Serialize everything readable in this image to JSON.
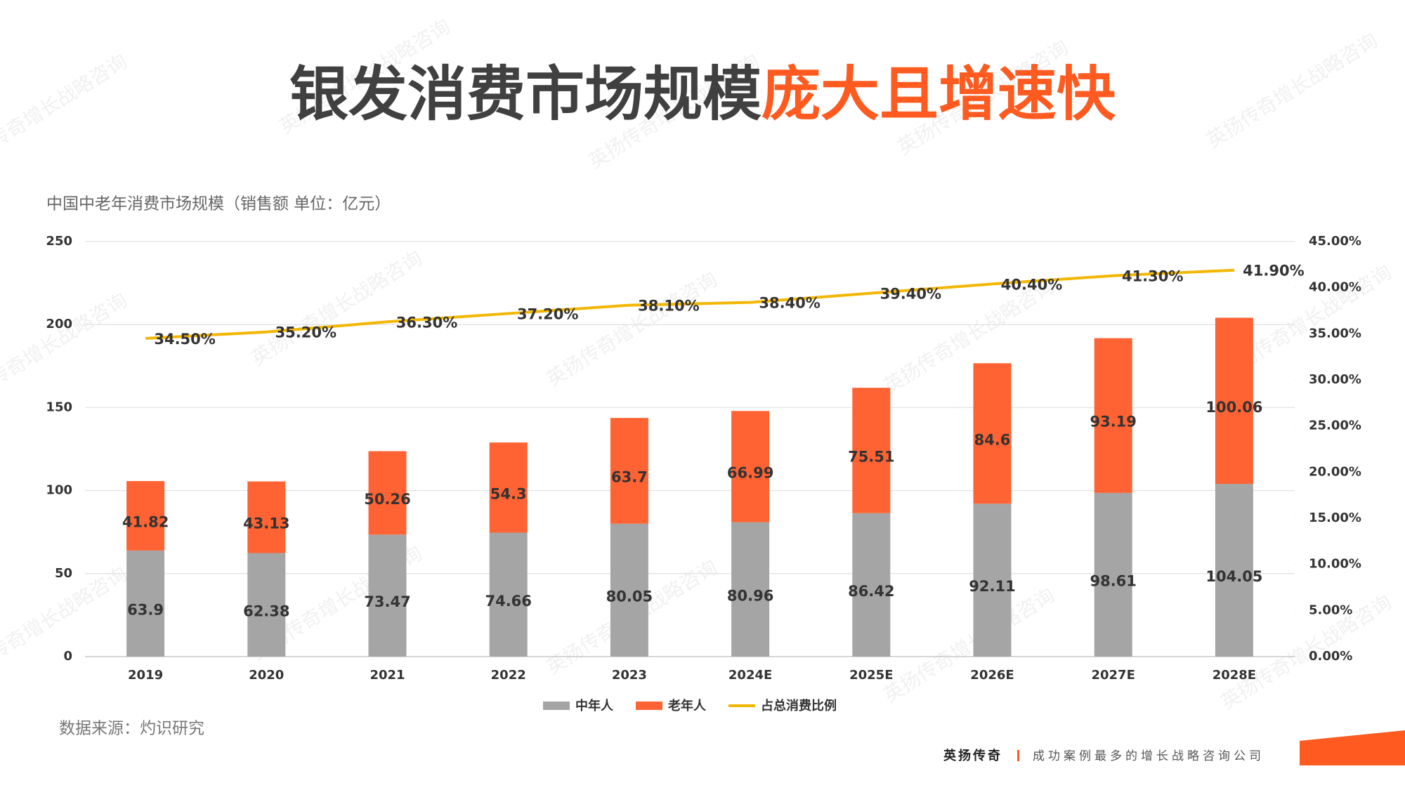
{
  "header": {
    "title_main": "银发消费市场规模",
    "title_highlight": "庞大且增速快"
  },
  "watermark": "英扬传奇增长战略咨询",
  "chart_data": {
    "type": "bar",
    "subtitle": "中国中老年消费市场规模（销售额 单位：亿元）",
    "categories": [
      "2019",
      "2020",
      "2021",
      "2022",
      "2023",
      "2024E",
      "2025E",
      "2026E",
      "2027E",
      "2028E"
    ],
    "series": [
      {
        "name": "中年人",
        "type": "bar",
        "color": "#a5a5a5",
        "values": [
          63.9,
          62.38,
          73.47,
          74.66,
          80.05,
          80.96,
          86.42,
          92.11,
          98.61,
          104.05
        ]
      },
      {
        "name": "老年人",
        "type": "bar",
        "color": "#ff6333",
        "values": [
          41.82,
          43.13,
          50.26,
          54.3,
          63.7,
          66.99,
          75.51,
          84.6,
          93.19,
          100.06
        ]
      },
      {
        "name": "占总消费比例",
        "type": "line",
        "axis": "y2",
        "color": "#f2b705",
        "values": [
          34.5,
          35.2,
          36.3,
          37.2,
          38.1,
          38.4,
          39.4,
          40.4,
          41.3,
          41.9
        ],
        "value_labels": [
          "34.50%",
          "35.20%",
          "36.30%",
          "37.20%",
          "38.10%",
          "38.40%",
          "39.40%",
          "40.40%",
          "41.30%",
          "41.90%"
        ]
      }
    ],
    "stacked": true,
    "ylim": [
      0,
      250
    ],
    "yticks": [
      0,
      50,
      100,
      150,
      200,
      250
    ],
    "y2lim": [
      0,
      45
    ],
    "y2ticks": [
      {
        "value": 0,
        "label": "0.00%"
      },
      {
        "value": 5,
        "label": "5.00%"
      },
      {
        "value": 10,
        "label": "10.00%"
      },
      {
        "value": 15,
        "label": "15.00%"
      },
      {
        "value": 20,
        "label": "20.00%"
      },
      {
        "value": 25,
        "label": "25.00%"
      },
      {
        "value": 30,
        "label": "30.00%"
      },
      {
        "value": 35,
        "label": "35.00%"
      },
      {
        "value": 40,
        "label": "40.00%"
      },
      {
        "value": 45,
        "label": "45.00%"
      }
    ],
    "grid": true,
    "legend": "bottom",
    "source": "数据来源：灼识研究"
  },
  "footer": {
    "brand": "英扬传奇",
    "slogan": "成功案例最多的增长战略咨询公司"
  }
}
